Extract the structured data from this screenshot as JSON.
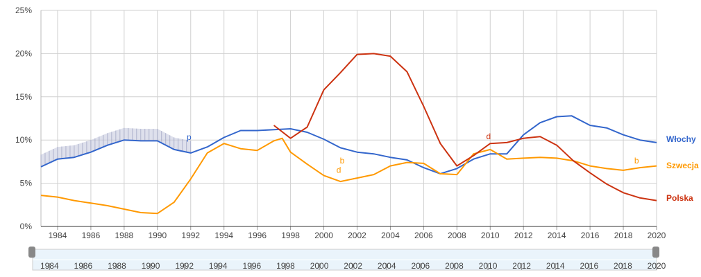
{
  "chart_data": {
    "type": "line",
    "title": "",
    "xlabel": "",
    "ylabel": "",
    "xlim": [
      1983.0,
      2020.0
    ],
    "ylim": [
      0,
      25
    ],
    "grid": true,
    "legend_position": "right",
    "y_ticks": [
      0,
      5,
      10,
      15,
      20,
      25
    ],
    "y_tick_labels": [
      "0%",
      "5%",
      "10%",
      "15%",
      "20%",
      "25%"
    ],
    "x_ticks": [
      1984,
      1986,
      1988,
      1990,
      1992,
      1994,
      1996,
      1998,
      2000,
      2002,
      2004,
      2006,
      2008,
      2010,
      2012,
      2014,
      2016,
      2018,
      2020
    ],
    "x_tick_labels": [
      "1984",
      "1986",
      "1988",
      "1990",
      "1992",
      "1994",
      "1996",
      "1998",
      "2000",
      "2002",
      "2004",
      "2006",
      "2008",
      "2010",
      "2012",
      "2014",
      "2016",
      "2018",
      "2020"
    ],
    "series": [
      {
        "name": "Włochy",
        "color": "#3366cc",
        "x": [
          1983.0,
          1984.0,
          1985.0,
          1986.0,
          1987.0,
          1988.0,
          1989.0,
          1990.0,
          1991.0,
          1992.0,
          1993.0,
          1994.0,
          1995.0,
          1996.0,
          1997.0,
          1998.0,
          1999.0,
          2000.0,
          2001.0,
          2002.0,
          2003.0,
          2004.0,
          2005.0,
          2006.0,
          2007.0,
          2008.0,
          2009.0,
          2010.0,
          2011.0,
          2012.0,
          2013.0,
          2014.0,
          2014.9,
          2016.0,
          2017.0,
          2018.0,
          2019.0,
          2020.0
        ],
        "y": [
          6.9,
          7.8,
          8.0,
          8.6,
          9.4,
          10.0,
          9.9,
          9.9,
          8.9,
          8.5,
          9.2,
          10.3,
          11.1,
          11.1,
          11.2,
          11.3,
          10.9,
          10.1,
          9.1,
          8.6,
          8.4,
          8.0,
          7.7,
          6.8,
          6.1,
          6.7,
          7.8,
          8.4,
          8.4,
          10.6,
          12.0,
          12.7,
          12.8,
          11.7,
          11.4,
          10.6,
          10.0,
          9.7
        ]
      },
      {
        "name": "Szwecja",
        "color": "#ff9900",
        "x": [
          1983.0,
          1984.0,
          1985.0,
          1986.0,
          1987.0,
          1988.0,
          1989.0,
          1990.0,
          1991.0,
          1992.0,
          1993.0,
          1994.0,
          1995.0,
          1996.0,
          1997.0,
          1997.5,
          1998.0,
          1999.0,
          2000.0,
          2001.0,
          2002.0,
          2003.0,
          2004.0,
          2005.0,
          2006.0,
          2007.0,
          2008.0,
          2009.0,
          2010.0,
          2011.0,
          2012.0,
          2013.0,
          2014.0,
          2015.0,
          2016.0,
          2017.0,
          2018.0,
          2019.0,
          2020.0
        ],
        "y": [
          3.6,
          3.4,
          3.0,
          2.7,
          2.4,
          2.0,
          1.6,
          1.5,
          2.8,
          5.5,
          8.5,
          9.6,
          9.0,
          8.8,
          9.9,
          10.2,
          8.6,
          7.2,
          5.9,
          5.2,
          5.6,
          6.0,
          7.0,
          7.4,
          7.3,
          6.1,
          6.0,
          8.4,
          8.9,
          7.8,
          7.9,
          8.0,
          7.9,
          7.6,
          7.0,
          6.7,
          6.5,
          6.8,
          7.0
        ]
      },
      {
        "name": "Polska",
        "color": "#cc3311",
        "x": [
          1997.0,
          1998.0,
          1999.0,
          2000.0,
          2001.0,
          2002.0,
          2003.0,
          2004.0,
          2005.0,
          2006.0,
          2007.0,
          2008.0,
          2009.0,
          2010.0,
          2011.0,
          2012.0,
          2013.0,
          2014.0,
          2015.0,
          2016.0,
          2017.0,
          2018.0,
          2019.0,
          2020.0
        ],
        "y": [
          11.7,
          10.2,
          11.5,
          15.8,
          17.8,
          19.9,
          20.0,
          19.7,
          17.9,
          13.9,
          9.6,
          7.0,
          8.2,
          9.6,
          9.7,
          10.2,
          10.4,
          9.4,
          7.6,
          6.2,
          4.9,
          3.9,
          3.3,
          3.0
        ]
      }
    ],
    "annotations": [
      {
        "text": "p",
        "x": 1991.9,
        "y": 10.0,
        "color": "#3366cc"
      },
      {
        "text": "b",
        "x": 2001.1,
        "y": 7.3,
        "color": "#ff9900"
      },
      {
        "text": "d",
        "x": 2000.9,
        "y": 6.2,
        "color": "#ff9900"
      },
      {
        "text": "d",
        "x": 2009.9,
        "y": 10.1,
        "color": "#cc3311"
      },
      {
        "text": "b",
        "x": 2018.8,
        "y": 7.3,
        "color": "#ff9900"
      }
    ],
    "navigator": {
      "x_tick_labels": [
        "1984",
        "1986",
        "1988",
        "1990",
        "1992",
        "1994",
        "1996",
        "1998",
        "2000",
        "2002",
        "2004",
        "2006",
        "2008",
        "2010",
        "2012",
        "2014",
        "2016",
        "2018",
        "2020"
      ]
    }
  }
}
